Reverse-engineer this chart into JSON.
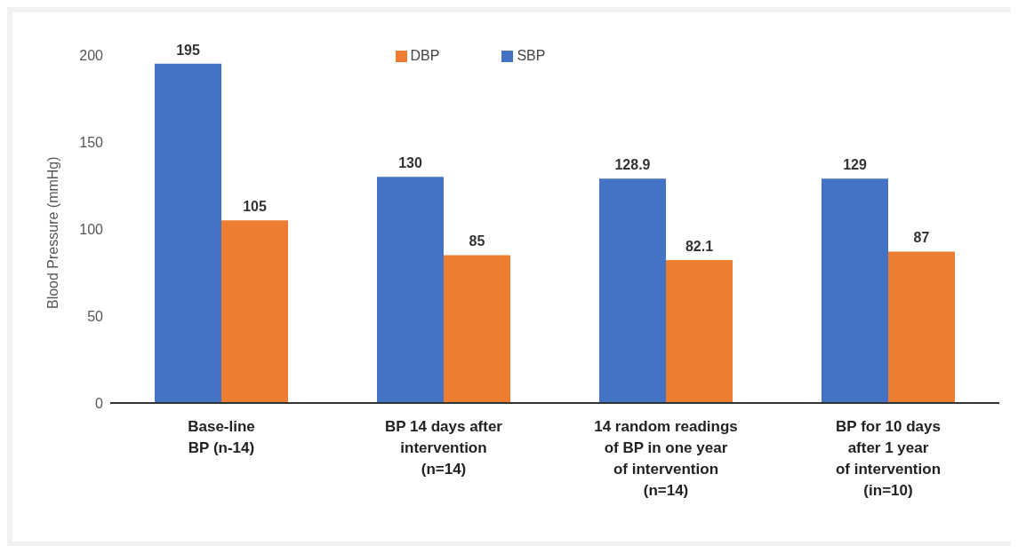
{
  "chart_data": {
    "type": "bar",
    "ylabel": "Blood Pressure (mmHg)",
    "categories": [
      "Base-line\nBP (n-14)",
      "BP 14 days after\nintervention\n(n=14)",
      "14 random readings\nof BP in one year\nof intervention\n(n=14)",
      "BP for 10 days\nafter 1 year\nof intervention\n(in=10)"
    ],
    "series": [
      {
        "name": "SBP",
        "color": "#4472c4",
        "values": [
          195,
          130,
          128.9,
          129
        ]
      },
      {
        "name": "DBP",
        "color": "#ed7d31",
        "values": [
          105,
          85,
          82.1,
          87
        ]
      }
    ],
    "ylim": [
      0,
      200
    ],
    "yticks": [
      0,
      50,
      100,
      150,
      200
    ],
    "grid": false,
    "legend": "top",
    "data_labels": true
  }
}
